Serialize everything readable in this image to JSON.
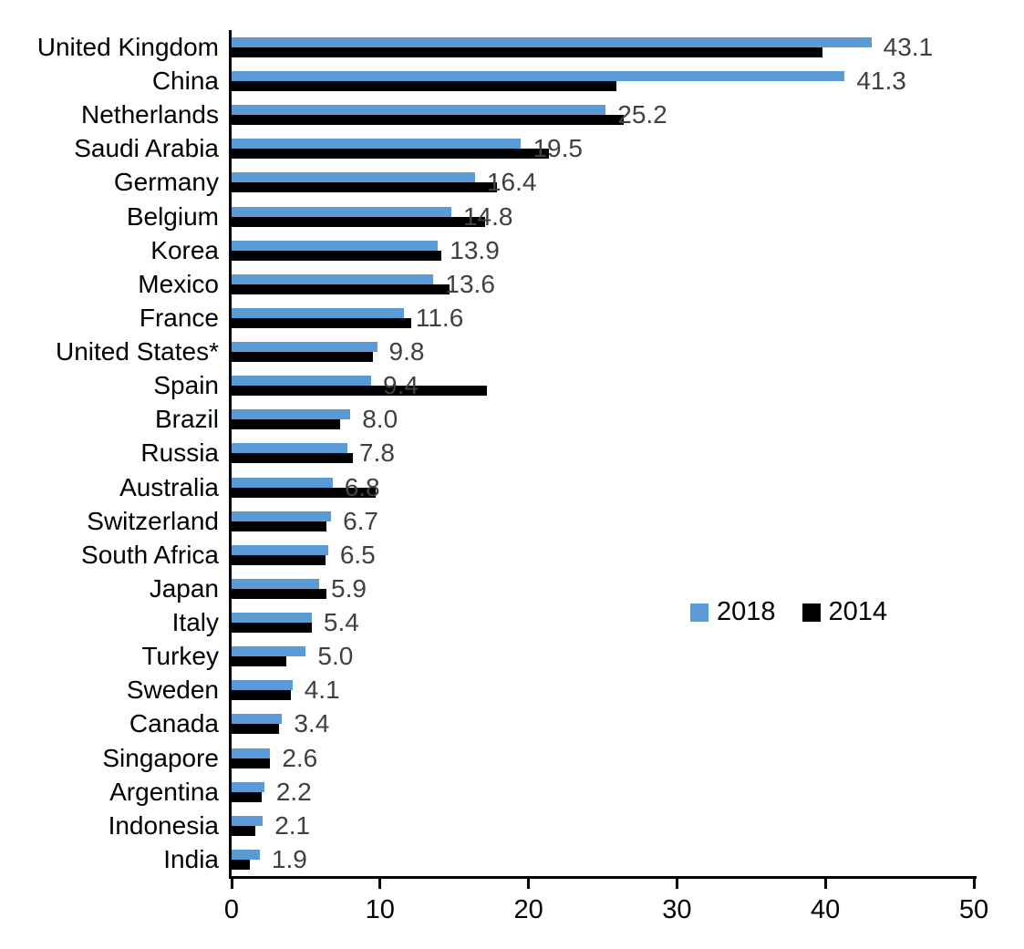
{
  "chart_data": {
    "type": "bar",
    "orientation": "horizontal",
    "title": "",
    "xlabel": "",
    "ylabel": "",
    "xlim": [
      0,
      50
    ],
    "x_ticks": [
      0,
      10,
      20,
      30,
      40,
      50
    ],
    "grid": false,
    "legend_position": "middle-right",
    "categories": [
      "United Kingdom",
      "China",
      "Netherlands",
      "Saudi Arabia",
      "Germany",
      "Belgium",
      "Korea",
      "Mexico",
      "France",
      "United States*",
      "Spain",
      "Brazil",
      "Russia",
      "Australia",
      "Switzerland",
      "South Africa",
      "Japan",
      "Italy",
      "Turkey",
      "Sweden",
      "Canada",
      "Singapore",
      "Argentina",
      "Indonesia",
      "India"
    ],
    "series": [
      {
        "name": "2018",
        "color": "#5B9BD5",
        "values": [
          43.1,
          41.3,
          25.2,
          19.5,
          16.4,
          14.8,
          13.9,
          13.6,
          11.6,
          9.8,
          9.4,
          8.0,
          7.8,
          6.8,
          6.7,
          6.5,
          5.9,
          5.4,
          5.0,
          4.1,
          3.4,
          2.6,
          2.2,
          2.1,
          1.9
        ]
      },
      {
        "name": "2014",
        "color": "#000000",
        "values": [
          39.8,
          25.9,
          26.4,
          21.4,
          17.9,
          17.1,
          14.1,
          14.7,
          12.1,
          9.5,
          17.2,
          7.3,
          8.2,
          9.7,
          6.4,
          6.3,
          6.4,
          5.4,
          3.7,
          4.0,
          3.2,
          2.6,
          2.0,
          1.6,
          1.2
        ]
      }
    ],
    "value_labels": [
      "43.1",
      "41.3",
      "25.2",
      "19.5",
      "16.4",
      "14.8",
      "13.9",
      "13.6",
      "11.6",
      "9.8",
      "9.4",
      "8.0",
      "7.8",
      "6.8",
      "6.7",
      "6.5",
      "5.9",
      "5.4",
      "5.0",
      "4.1",
      "3.4",
      "2.6",
      "2.2",
      "2.1",
      "1.9"
    ],
    "value_labels_series": "2018"
  },
  "colors": {
    "value_label_text": "#404040",
    "axis": "#000000",
    "background": "#FFFFFF"
  }
}
